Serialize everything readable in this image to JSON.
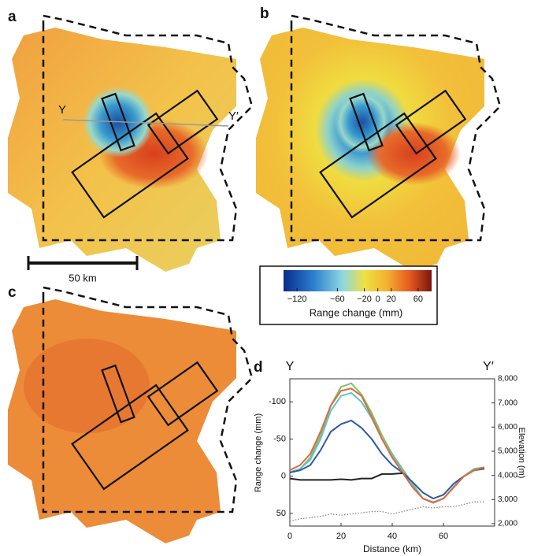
{
  "panels": [
    {
      "label": "a",
      "start": "Y",
      "end": "Y′"
    },
    {
      "label": "b"
    },
    {
      "label": "c"
    }
  ],
  "scale_bar": "50 km",
  "colorbar": {
    "title": "Range change (mm)",
    "lim": [
      -140,
      80
    ],
    "ticks": [
      {
        "value": -120,
        "label": "−120"
      },
      {
        "value": -60,
        "label": "−60"
      },
      {
        "value": -20,
        "label": "−20"
      },
      0,
      20,
      60
    ]
  },
  "chart_data": {
    "type": "line",
    "label": "d",
    "start": "Y",
    "end": "Y′",
    "xlabel": "Distance (km)",
    "ylabel": "Range change (mm)",
    "y2label": "Elevation (m)",
    "x": [
      0,
      4,
      8,
      12,
      16,
      20,
      24,
      28,
      32,
      36,
      40,
      44,
      48,
      52,
      56,
      60,
      64,
      68,
      72,
      76
    ],
    "xlim": [
      0,
      80
    ],
    "xticks": [
      0,
      20,
      40,
      60
    ],
    "ylim": [
      67,
      -131
    ],
    "yticks": [
      -100,
      -50,
      0,
      50
    ],
    "y2lim": [
      1900,
      8000
    ],
    "y2ticks": [
      {
        "value": 2000,
        "label": "2,000"
      },
      {
        "value": 3000,
        "label": "3,000"
      },
      {
        "value": 4000,
        "label": "4,000"
      },
      {
        "value": 5000,
        "label": "5,000"
      },
      {
        "value": 6000,
        "label": "6,000"
      },
      {
        "value": 7000,
        "label": "7,000"
      },
      {
        "value": 8000,
        "label": "8,000"
      }
    ],
    "series": [
      {
        "color": "#7cc46a",
        "values": [
          -5,
          -10,
          -25,
          -55,
          -95,
          -120,
          -125,
          -110,
          -85,
          -55,
          -30,
          -10,
          10,
          30,
          35,
          30,
          15,
          0,
          -10,
          -12
        ]
      },
      {
        "color": "#5cc6c8",
        "values": [
          -5,
          -10,
          -22,
          -50,
          -88,
          -108,
          -112,
          -100,
          -78,
          -50,
          -28,
          -8,
          12,
          30,
          36,
          30,
          14,
          0,
          -9,
          -11
        ]
      },
      {
        "color": "#2b5aa6",
        "values": [
          -5,
          -8,
          -15,
          -35,
          -60,
          -70,
          -75,
          -65,
          -50,
          -30,
          -15,
          -5,
          8,
          22,
          30,
          25,
          10,
          0,
          -8,
          -10
        ]
      },
      {
        "color": "#e8643c",
        "values": [
          -8,
          -15,
          -30,
          -60,
          -95,
          -115,
          -118,
          -108,
          -80,
          -50,
          -25,
          -5,
          15,
          30,
          35,
          30,
          15,
          0,
          -8,
          -12
        ]
      },
      {
        "color": "#222222",
        "values": [
          3,
          5,
          5,
          5,
          5,
          4,
          5,
          3,
          3,
          -3,
          -3,
          -4,
          null,
          null,
          null,
          null,
          null,
          null,
          null,
          null
        ]
      },
      {
        "color": "#888888",
        "axis": "y2",
        "dash": "dotted",
        "values": [
          2100,
          2200,
          2250,
          2300,
          2400,
          2350,
          2400,
          2450,
          2500,
          2500,
          2400,
          2500,
          2600,
          2700,
          2650,
          2700,
          2700,
          2800,
          2900,
          2900
        ]
      }
    ]
  }
}
